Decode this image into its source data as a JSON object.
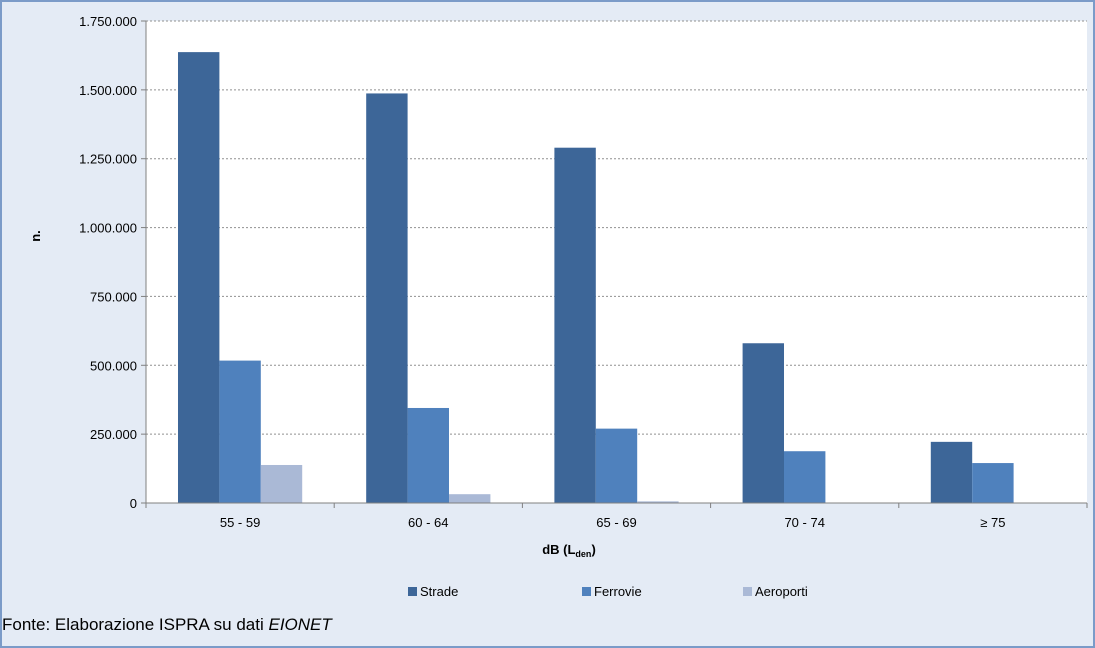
{
  "chart_data": {
    "type": "bar",
    "categories": [
      "55 - 59",
      "60 - 64",
      "65 - 69",
      "70 - 74",
      "≥ 75"
    ],
    "series": [
      {
        "name": "Strade",
        "color": "#3d6698",
        "values": [
          1637000,
          1487000,
          1290000,
          580000,
          222000
        ]
      },
      {
        "name": "Ferrovie",
        "color": "#4f81bd",
        "values": [
          517000,
          345000,
          270000,
          188000,
          145000
        ]
      },
      {
        "name": "Aeroporti",
        "color": "#aab9d6",
        "values": [
          138000,
          32000,
          6000,
          0,
          0
        ]
      }
    ],
    "ylim": [
      0,
      1750000
    ],
    "yticks": [
      0,
      250000,
      500000,
      750000,
      1000000,
      1250000,
      1500000,
      1750000
    ],
    "ytick_labels": [
      "0",
      "250.000",
      "500.000",
      "750.000",
      "1.000.000",
      "1.250.000",
      "1.500.000",
      "1.750.000"
    ],
    "ylabel": "n.",
    "xlabel": {
      "main": "dB (L",
      "sub": "den",
      "close": ")"
    },
    "legend_position": "bottom",
    "grid": "horizontal dashed"
  },
  "source": {
    "prefix": "Fonte: Elaborazione ISPRA su dati ",
    "emph": "EIONET"
  }
}
